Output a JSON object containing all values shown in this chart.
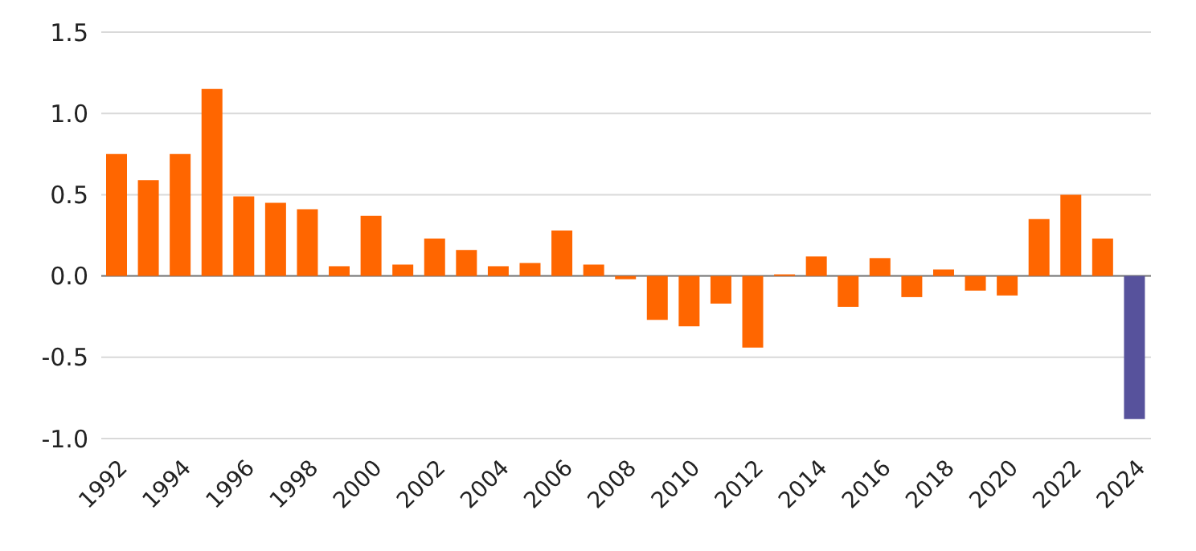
{
  "chart_data": {
    "type": "bar",
    "categories": [
      "1992",
      null,
      "1994",
      null,
      "1996",
      null,
      "1998",
      null,
      "2000",
      null,
      "2002",
      null,
      "2004",
      null,
      "2006",
      null,
      "2008",
      null,
      "2010",
      null,
      "2012",
      null,
      "2014",
      null,
      "2016",
      null,
      "2018",
      null,
      "2020",
      null,
      "2022",
      null,
      "2024"
    ],
    "values": [
      0.75,
      0.59,
      0.75,
      1.15,
      0.49,
      0.45,
      0.41,
      0.06,
      0.37,
      0.07,
      0.23,
      0.16,
      0.06,
      0.08,
      0.28,
      0.07,
      -0.02,
      -0.27,
      -0.31,
      -0.17,
      -0.44,
      0.01,
      0.12,
      -0.19,
      0.11,
      -0.13,
      0.04,
      -0.09,
      -0.12,
      0.35,
      0.5,
      0.23,
      -0.88
    ],
    "colors": [
      "#ff6600",
      "#ff6600",
      "#ff6600",
      "#ff6600",
      "#ff6600",
      "#ff6600",
      "#ff6600",
      "#ff6600",
      "#ff6600",
      "#ff6600",
      "#ff6600",
      "#ff6600",
      "#ff6600",
      "#ff6600",
      "#ff6600",
      "#ff6600",
      "#ff6600",
      "#ff6600",
      "#ff6600",
      "#ff6600",
      "#ff6600",
      "#ff6600",
      "#ff6600",
      "#ff6600",
      "#ff6600",
      "#ff6600",
      "#ff6600",
      "#ff6600",
      "#ff6600",
      "#ff6600",
      "#ff6600",
      "#ff6600",
      "#57529c"
    ],
    "ylim": [
      -1.0,
      1.5
    ],
    "yticks": [
      {
        "value": -1,
        "label": "-1.0"
      },
      {
        "value": -0.5,
        "label": "-0.5"
      },
      {
        "value": 0,
        "label": "0.0"
      },
      {
        "value": 0.5,
        "label": "0.5"
      },
      {
        "value": 1,
        "label": "1.0"
      },
      {
        "value": 1.5,
        "label": "1.5"
      }
    ],
    "grid": "y"
  }
}
